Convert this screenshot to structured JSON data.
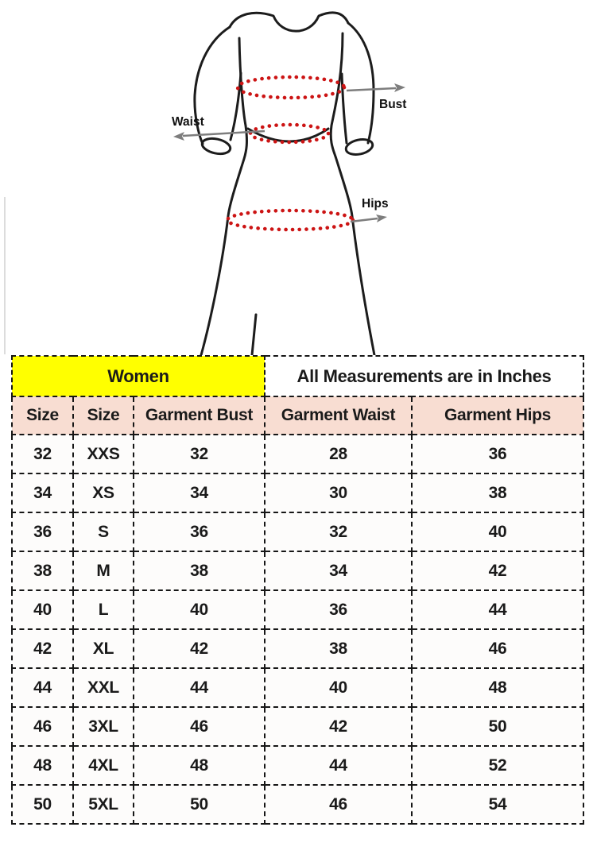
{
  "diagram": {
    "labels": {
      "bust": "Bust",
      "waist": "Waist",
      "hips": "Hips"
    },
    "colors": {
      "outline": "#1c1c1c",
      "measure_line": "#cc1414",
      "arrow": "#7d7d7d",
      "label_text": "#111111",
      "artifact": "#dcdcdc"
    }
  },
  "size_chart": {
    "group_header": {
      "women_label": "Women",
      "measurements_label": "All Measurements are in Inches",
      "women_bg": "#ffff00",
      "measurements_bg": "#ffffff"
    },
    "header_bg": "#f8ddd2",
    "border_color": "#161616",
    "columns": [
      {
        "label": "Size"
      },
      {
        "label": "Size"
      },
      {
        "label": "Garment Bust"
      },
      {
        "label": "Garment Waist"
      },
      {
        "label": "Garment Hips"
      }
    ],
    "rows": [
      {
        "size_num": "32",
        "size_alpha": "XXS",
        "bust": "32",
        "waist": "28",
        "hips": "36"
      },
      {
        "size_num": "34",
        "size_alpha": "XS",
        "bust": "34",
        "waist": "30",
        "hips": "38"
      },
      {
        "size_num": "36",
        "size_alpha": "S",
        "bust": "36",
        "waist": "32",
        "hips": "40"
      },
      {
        "size_num": "38",
        "size_alpha": "M",
        "bust": "38",
        "waist": "34",
        "hips": "42"
      },
      {
        "size_num": "40",
        "size_alpha": "L",
        "bust": "40",
        "waist": "36",
        "hips": "44"
      },
      {
        "size_num": "42",
        "size_alpha": "XL",
        "bust": "42",
        "waist": "38",
        "hips": "46"
      },
      {
        "size_num": "44",
        "size_alpha": "XXL",
        "bust": "44",
        "waist": "40",
        "hips": "48"
      },
      {
        "size_num": "46",
        "size_alpha": "3XL",
        "bust": "46",
        "waist": "42",
        "hips": "50"
      },
      {
        "size_num": "48",
        "size_alpha": "4XL",
        "bust": "48",
        "waist": "44",
        "hips": "52"
      },
      {
        "size_num": "50",
        "size_alpha": "5XL",
        "bust": "50",
        "waist": "46",
        "hips": "54"
      }
    ]
  },
  "chart_data": {
    "type": "table",
    "title": "Women — All Measurements are in Inches",
    "columns": [
      "Size",
      "Size",
      "Garment Bust",
      "Garment Waist",
      "Garment Hips"
    ],
    "rows": [
      [
        32,
        "XXS",
        32,
        28,
        36
      ],
      [
        34,
        "XS",
        34,
        30,
        38
      ],
      [
        36,
        "S",
        36,
        32,
        40
      ],
      [
        38,
        "M",
        38,
        34,
        42
      ],
      [
        40,
        "L",
        40,
        36,
        44
      ],
      [
        42,
        "XL",
        42,
        38,
        46
      ],
      [
        44,
        "XXL",
        44,
        40,
        48
      ],
      [
        46,
        "3XL",
        46,
        42,
        50
      ],
      [
        48,
        "4XL",
        48,
        44,
        52
      ],
      [
        50,
        "5XL",
        50,
        46,
        54
      ]
    ]
  }
}
